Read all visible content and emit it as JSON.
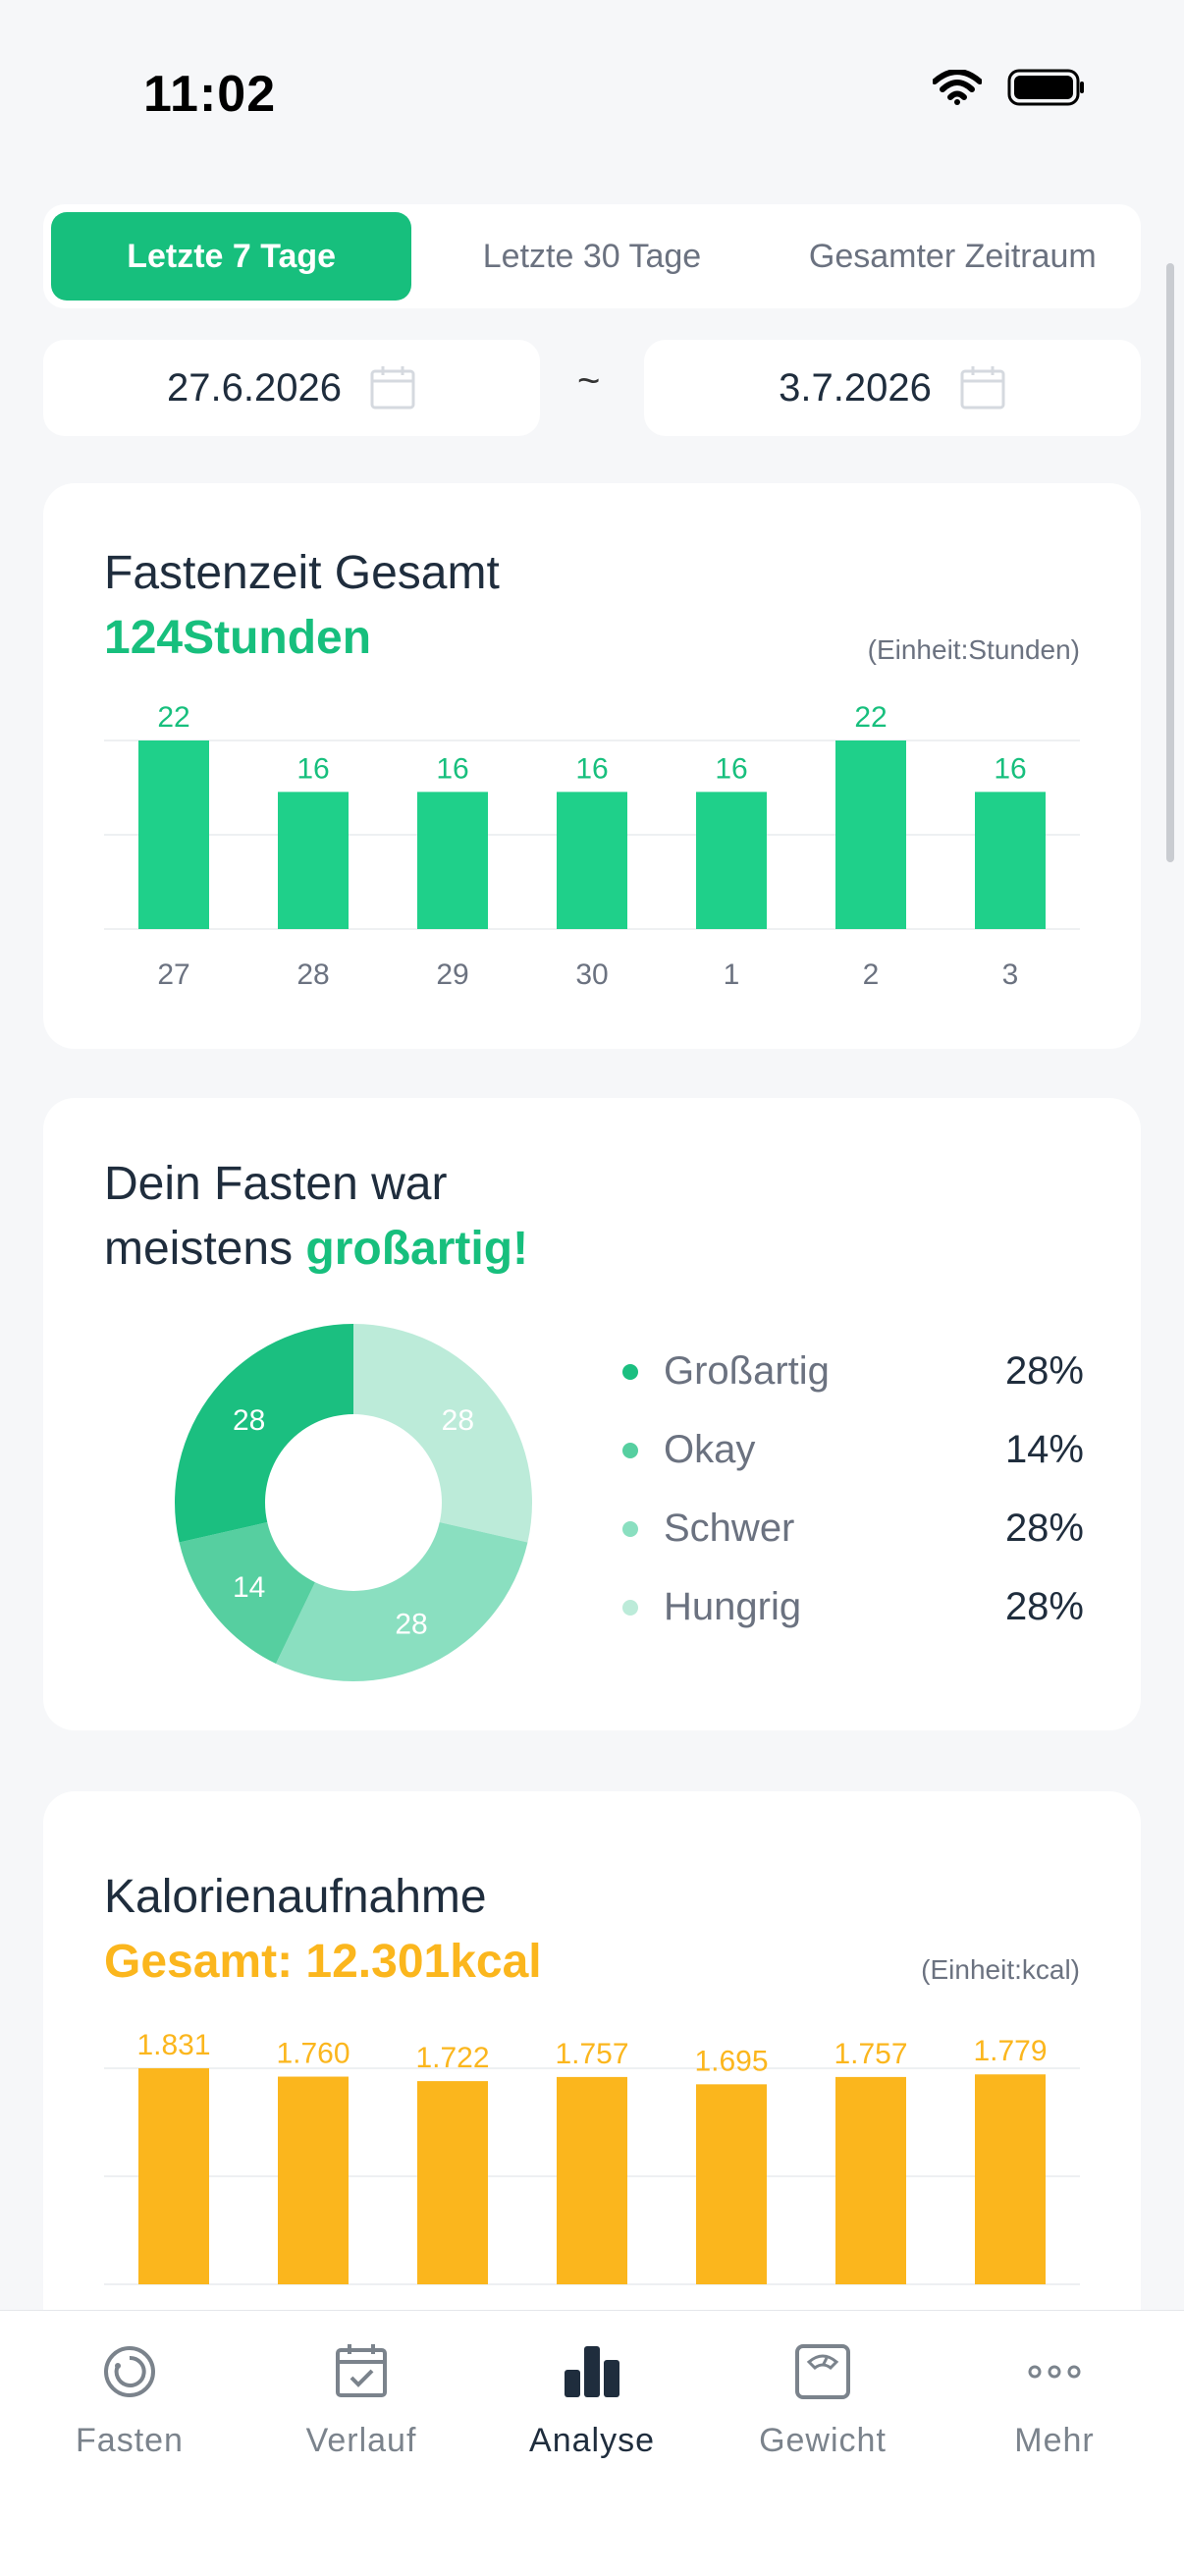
{
  "status_bar": {
    "time": "11:02"
  },
  "period_tabs": [
    {
      "label": "Letzte 7 Tage",
      "active": true
    },
    {
      "label": "Letzte 30 Tage",
      "active": false
    },
    {
      "label": "Gesamter Zeitraum",
      "active": false
    }
  ],
  "date_range": {
    "start": "27.6.2026",
    "separator": "~",
    "end": "3.7.2026"
  },
  "fasting_card": {
    "title": "Fastenzeit Gesamt",
    "total": "124Stunden",
    "unit": "(Einheit:Stunden)"
  },
  "mood_card": {
    "title_line1": "Dein Fasten war",
    "title_line2_prefix": "meistens ",
    "title_line2_highlight": "großartig!",
    "legend": [
      {
        "label": "Großartig",
        "pct": "28%",
        "color": "#1BBF80"
      },
      {
        "label": "Okay",
        "pct": "14%",
        "color": "#56CFA0"
      },
      {
        "label": "Schwer",
        "pct": "28%",
        "color": "#8ADFC0"
      },
      {
        "label": "Hungrig",
        "pct": "28%",
        "color": "#BCEBD9"
      }
    ]
  },
  "calories_card": {
    "title": "Kalorienaufnahme",
    "total": "Gesamt:  12.301kcal",
    "unit": "(Einheit:kcal)"
  },
  "tabbar": [
    {
      "label": "Fasten",
      "icon": "fasting-timer-icon",
      "active": false
    },
    {
      "label": "Verlauf",
      "icon": "calendar-check-icon",
      "active": false
    },
    {
      "label": "Analyse",
      "icon": "bar-chart-icon",
      "active": true
    },
    {
      "label": "Gewicht",
      "icon": "scale-icon",
      "active": false
    },
    {
      "label": "Mehr",
      "icon": "more-dots-icon",
      "active": false
    }
  ],
  "chart_data": [
    {
      "type": "bar",
      "title": "Fastenzeit Gesamt",
      "ylabel": "(Einheit:Stunden)",
      "categories": [
        "27",
        "28",
        "29",
        "30",
        "1",
        "2",
        "3"
      ],
      "values": [
        22,
        16,
        16,
        16,
        16,
        22,
        16
      ],
      "value_labels": [
        "22",
        "16",
        "16",
        "16",
        "16",
        "22",
        "16"
      ],
      "ylim": [
        0,
        22
      ],
      "color": "#1FD08A",
      "label_color": "#17BF7D",
      "grid": true
    },
    {
      "type": "pie",
      "labels": [
        "Großartig",
        "Okay",
        "Schwer",
        "Hungrig"
      ],
      "values": [
        28,
        14,
        28,
        28
      ],
      "colors": [
        "#1BBF80",
        "#56CFA0",
        "#8ADFC0",
        "#BCEBD9"
      ],
      "donut": true
    },
    {
      "type": "bar",
      "title": "Kalorienaufnahme",
      "ylabel": "(Einheit:kcal)",
      "values": [
        1831,
        1760,
        1722,
        1757,
        1695,
        1757,
        1779
      ],
      "value_labels": [
        "1.831",
        "1.760",
        "1.722",
        "1.757",
        "1.695",
        "1.757",
        "1.779"
      ],
      "color": "#FBB61D",
      "label_color": "#FBB61D",
      "grid": true
    }
  ]
}
